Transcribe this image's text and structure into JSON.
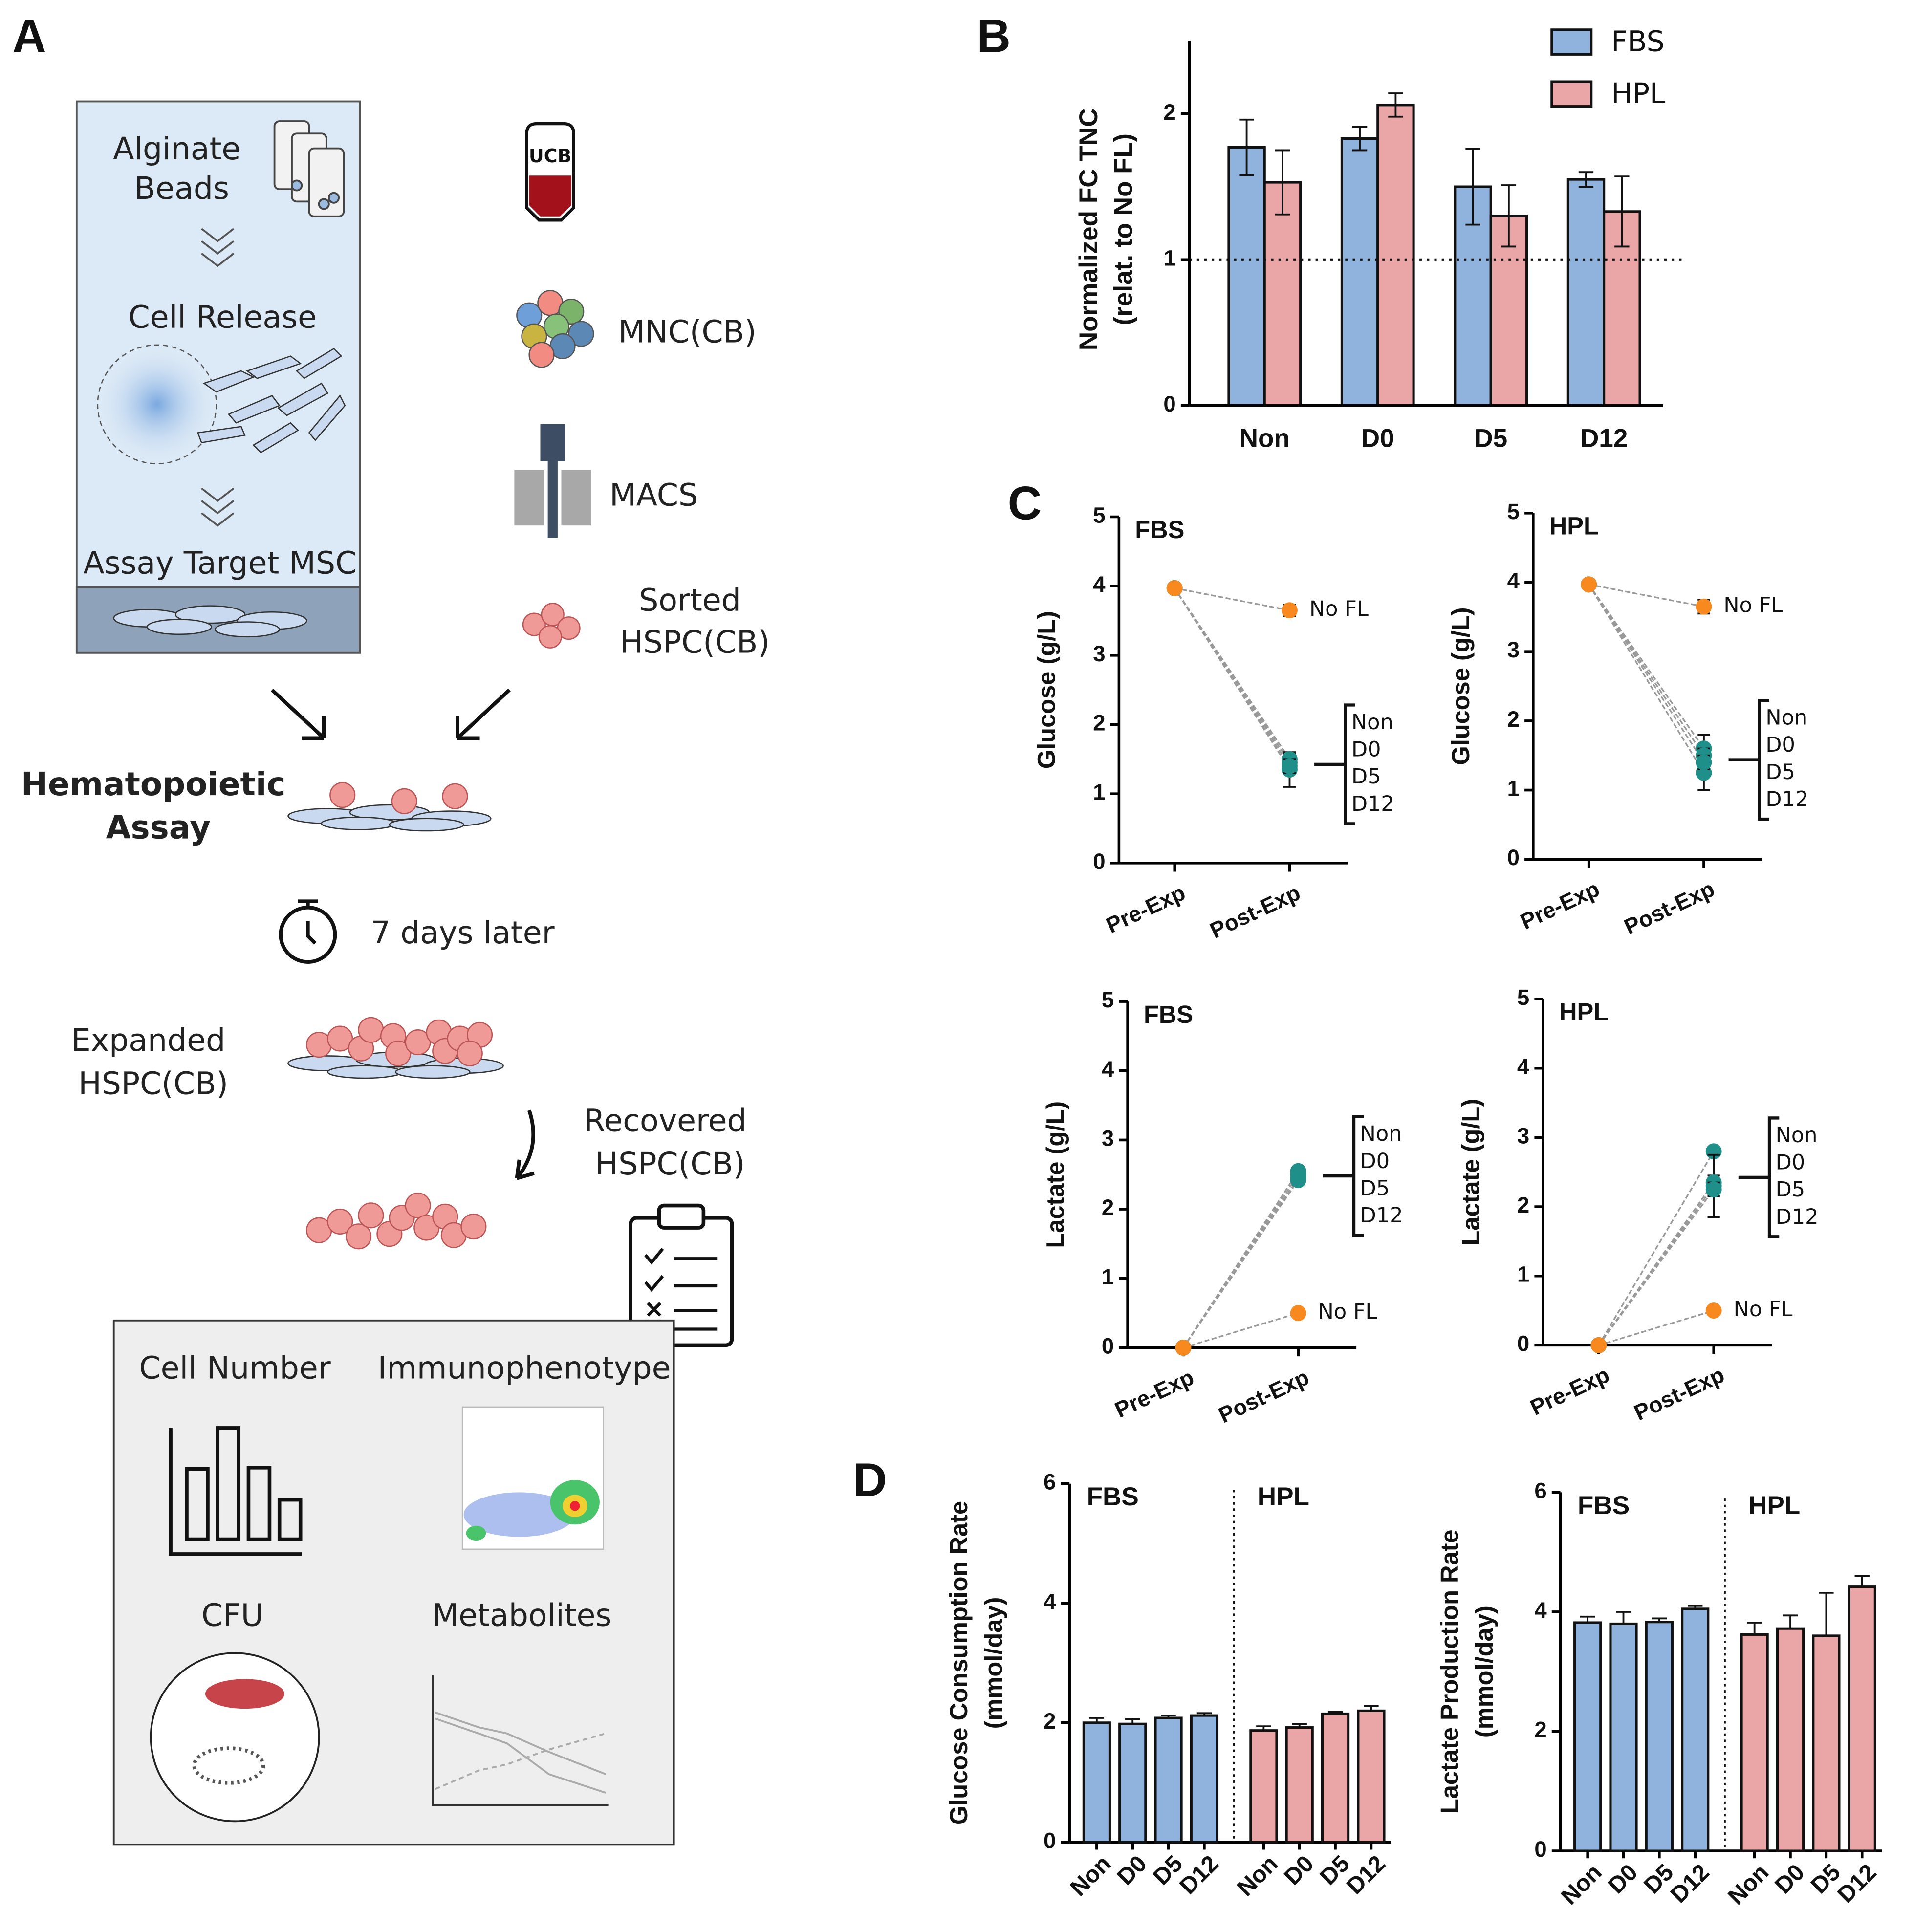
{
  "panel_labels": [
    "A",
    "B",
    "C",
    "D"
  ],
  "diagram": {
    "alginate_beads": [
      "Alginate",
      "Beads"
    ],
    "cell_release": "Cell Release",
    "assay_target": "Assay Target MSC",
    "ucb": "UCB",
    "mnc": "MNC(CB)",
    "macs": "MACS",
    "sorted": [
      "Sorted",
      "HSPC(CB)"
    ],
    "assay": [
      "Hematopoietic",
      "Assay"
    ],
    "days": "7 days later",
    "expanded": [
      "Expanded",
      "HSPC(CB)"
    ],
    "recovered": [
      "Recovered",
      "HSPC(CB)"
    ],
    "readouts": [
      "Cell Number",
      "Immunophenotype",
      "CFU",
      "Metabolites"
    ]
  },
  "chart_data": [
    {
      "type": "bar",
      "ylabel": [
        "Normalized FC TNC",
        "(relat. to No FL)"
      ],
      "categories": [
        "Non",
        "D0",
        "D5",
        "D12"
      ],
      "series": [
        {
          "name": "FBS",
          "color": "#8fb3dd",
          "values": [
            1.77,
            1.83,
            1.5,
            1.55
          ],
          "errors": [
            0.19,
            0.08,
            0.26,
            0.05
          ]
        },
        {
          "name": "HPL",
          "color": "#eaa6a6",
          "values": [
            1.53,
            2.06,
            1.3,
            1.33
          ],
          "errors": [
            0.22,
            0.08,
            0.21,
            0.24
          ]
        }
      ],
      "ylim": [
        0,
        2.5
      ],
      "yticks": [
        0,
        1,
        2
      ],
      "reference_line": 1,
      "legend": "top-right"
    },
    {
      "type": "line",
      "title": "FBS",
      "ylabel": "Glucose (g/L)",
      "categories": [
        "Pre-Exp",
        "Post-Exp"
      ],
      "series": [
        {
          "name": "No FL",
          "color": "#f7891f",
          "values": [
            3.97,
            3.65
          ],
          "errors": [
            null,
            0.08
          ]
        },
        {
          "name": "Non",
          "color": "#1f8f8a",
          "values": [
            3.97,
            1.45
          ],
          "errors": [
            null,
            0.12
          ]
        },
        {
          "name": "D0",
          "color": "#1f8f8a",
          "values": [
            3.97,
            1.35
          ],
          "errors": [
            null,
            0.25
          ]
        },
        {
          "name": "D5",
          "color": "#1f8f8a",
          "values": [
            3.97,
            1.5
          ],
          "errors": [
            null,
            0.08
          ]
        },
        {
          "name": "D12",
          "color": "#1f8f8a",
          "values": [
            3.97,
            1.4
          ],
          "errors": [
            null,
            0.1
          ]
        }
      ],
      "ylim": [
        0,
        5
      ],
      "yticks": [
        0,
        1,
        2,
        3,
        4,
        5
      ]
    },
    {
      "type": "line",
      "title": "HPL",
      "ylabel": "Glucose (g/L)",
      "categories": [
        "Pre-Exp",
        "Post-Exp"
      ],
      "series": [
        {
          "name": "No FL",
          "color": "#f7891f",
          "values": [
            3.97,
            3.65
          ],
          "errors": [
            null,
            0.1
          ]
        },
        {
          "name": "Non",
          "color": "#1f8f8a",
          "values": [
            3.97,
            1.6
          ],
          "errors": [
            null,
            0.2
          ]
        },
        {
          "name": "D0",
          "color": "#1f8f8a",
          "values": [
            3.97,
            1.25
          ],
          "errors": [
            null,
            0.25
          ]
        },
        {
          "name": "D5",
          "color": "#1f8f8a",
          "values": [
            3.97,
            1.5
          ],
          "errors": [
            null,
            0.1
          ]
        },
        {
          "name": "D12",
          "color": "#1f8f8a",
          "values": [
            3.97,
            1.4
          ],
          "errors": [
            null,
            0.1
          ]
        }
      ],
      "ylim": [
        0,
        5
      ],
      "yticks": [
        0,
        1,
        2,
        3,
        4,
        5
      ]
    },
    {
      "type": "line",
      "title": "FBS",
      "ylabel": "Lactate (g/L)",
      "categories": [
        "Pre-Exp",
        "Post-Exp"
      ],
      "series": [
        {
          "name": "No FL",
          "color": "#f7891f",
          "values": [
            0,
            0.5
          ],
          "errors": [
            null,
            null
          ]
        },
        {
          "name": "Non",
          "color": "#1f8f8a",
          "values": [
            0,
            2.55
          ],
          "errors": [
            null,
            0.05
          ]
        },
        {
          "name": "D0",
          "color": "#1f8f8a",
          "values": [
            0,
            2.45
          ],
          "errors": [
            null,
            0.05
          ]
        },
        {
          "name": "D5",
          "color": "#1f8f8a",
          "values": [
            0,
            2.5
          ],
          "errors": [
            null,
            0.05
          ]
        },
        {
          "name": "D12",
          "color": "#1f8f8a",
          "values": [
            0,
            2.42
          ],
          "errors": [
            null,
            0.05
          ]
        }
      ],
      "ylim": [
        0,
        5
      ],
      "yticks": [
        0,
        1,
        2,
        3,
        4,
        5
      ]
    },
    {
      "type": "line",
      "title": "HPL",
      "ylabel": "Lactate (g/L)",
      "categories": [
        "Pre-Exp",
        "Post-Exp"
      ],
      "series": [
        {
          "name": "No FL",
          "color": "#f7891f",
          "values": [
            0,
            0.5
          ],
          "errors": [
            null,
            null
          ]
        },
        {
          "name": "Non",
          "color": "#1f8f8a",
          "values": [
            0,
            2.8
          ],
          "errors": [
            null,
            0.05
          ]
        },
        {
          "name": "D0",
          "color": "#1f8f8a",
          "values": [
            0,
            2.3
          ],
          "errors": [
            null,
            0.45
          ]
        },
        {
          "name": "D5",
          "color": "#1f8f8a",
          "values": [
            0,
            2.35
          ],
          "errors": [
            null,
            0.1
          ]
        },
        {
          "name": "D12",
          "color": "#1f8f8a",
          "values": [
            0,
            2.25
          ],
          "errors": [
            null,
            0.1
          ]
        }
      ],
      "ylim": [
        0,
        5
      ],
      "yticks": [
        0,
        1,
        2,
        3,
        4,
        5
      ]
    },
    {
      "type": "sectioned_bar",
      "ylabel": [
        "Glucose Consumption Rate",
        "(mmol/day)"
      ],
      "categories": [
        "Non",
        "D0",
        "D5",
        "D12"
      ],
      "series": [
        {
          "name": "FBS",
          "color": "#8fb3dd",
          "values": [
            2.0,
            1.98,
            2.08,
            2.12
          ],
          "errors": [
            0.08,
            0.08,
            0.04,
            0.04
          ]
        },
        {
          "name": "HPL",
          "color": "#eaa6a6",
          "values": [
            1.87,
            1.92,
            2.15,
            2.2
          ],
          "errors": [
            0.07,
            0.06,
            0.03,
            0.08
          ]
        }
      ],
      "ylim": [
        0,
        6
      ],
      "yticks": [
        0,
        2,
        4,
        6
      ]
    },
    {
      "type": "sectioned_bar",
      "ylabel": [
        "Lactate Production Rate",
        "(mmol/day)"
      ],
      "categories": [
        "Non",
        "D0",
        "D5",
        "D12"
      ],
      "series": [
        {
          "name": "FBS",
          "color": "#8fb3dd",
          "values": [
            3.82,
            3.8,
            3.83,
            4.05
          ],
          "errors": [
            0.1,
            0.2,
            0.06,
            0.05
          ]
        },
        {
          "name": "HPL",
          "color": "#eaa6a6",
          "values": [
            3.62,
            3.72,
            3.6,
            4.42
          ],
          "errors": [
            0.2,
            0.22,
            0.72,
            0.18
          ]
        }
      ],
      "ylim": [
        0,
        6
      ],
      "yticks": [
        0,
        2,
        4,
        6
      ]
    }
  ]
}
